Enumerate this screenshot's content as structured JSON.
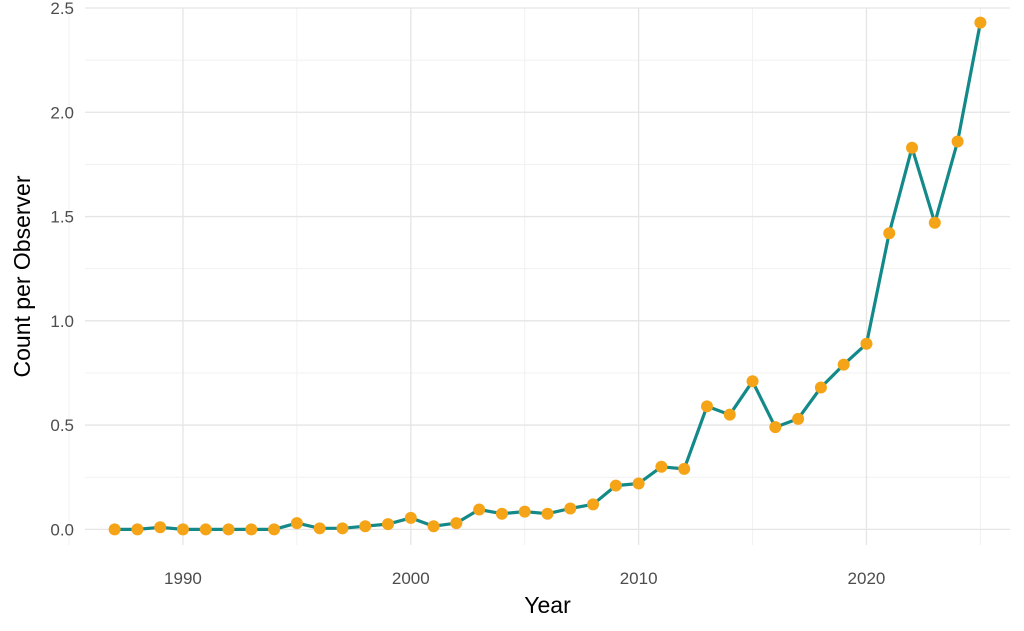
{
  "chart_data": {
    "type": "line",
    "title": "",
    "xlabel": "Year",
    "ylabel": "Count per Observer",
    "xlim": [
      1985.7,
      2026.3
    ],
    "ylim": [
      -0.075,
      2.5
    ],
    "x_ticks": [
      1990,
      2000,
      2010,
      2020
    ],
    "x_tick_labels": [
      "1990",
      "2000",
      "2010",
      "2020"
    ],
    "y_ticks": [
      0.0,
      0.5,
      1.0,
      1.5,
      2.0,
      2.5
    ],
    "y_tick_labels": [
      "0.0",
      "0.5",
      "1.0",
      "1.5",
      "2.0",
      "2.5"
    ],
    "grid": true,
    "legend": "none",
    "line_color": "#138a89",
    "point_color": "#f5a418",
    "series": [
      {
        "x": [
          1987,
          1988,
          1989,
          1990,
          1991,
          1992,
          1993,
          1994,
          1995,
          1996,
          1997,
          1998,
          1999,
          2000,
          2001,
          2002,
          2003,
          2004,
          2005,
          2006,
          2007,
          2008,
          2009,
          2010,
          2011,
          2012,
          2013,
          2014,
          2015,
          2016,
          2017,
          2018,
          2019,
          2020,
          2021,
          2022,
          2023,
          2024,
          2025
        ],
        "values": [
          0.0,
          0.0,
          0.01,
          0.0,
          0.0,
          0.0,
          0.0,
          0.0,
          0.03,
          0.005,
          0.005,
          0.015,
          0.025,
          0.055,
          0.015,
          0.03,
          0.095,
          0.075,
          0.085,
          0.075,
          0.1,
          0.12,
          0.21,
          0.22,
          0.3,
          0.29,
          0.59,
          0.55,
          0.71,
          0.49,
          0.53,
          0.68,
          0.79,
          0.89,
          1.42,
          1.83,
          1.47,
          1.86,
          2.43
        ]
      }
    ]
  }
}
